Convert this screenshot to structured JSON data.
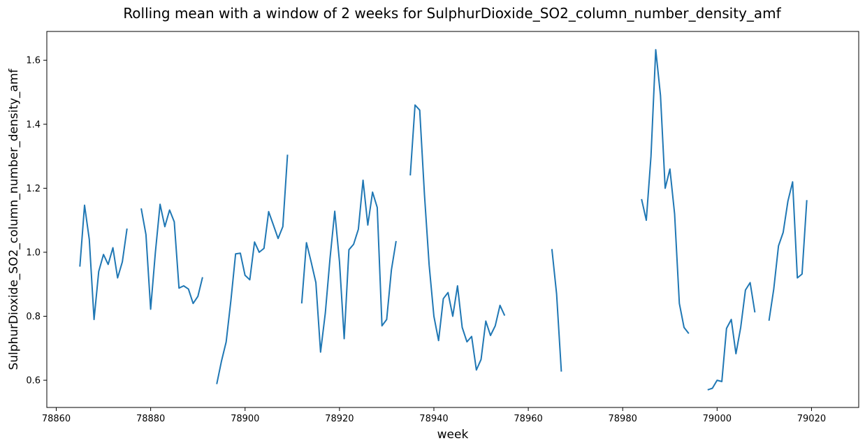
{
  "chart_data": {
    "type": "line",
    "title": "Rolling mean with a window of 2 weeks for SulphurDioxide_SO2_column_number_density_amf",
    "xlabel": "week",
    "ylabel": "SulphurDioxide_SO2_column_number_density_amf",
    "xlim": [
      78858,
      79030
    ],
    "ylim": [
      0.515,
      1.69
    ],
    "xticks": [
      78860,
      78880,
      78900,
      78920,
      78940,
      78960,
      78980,
      79000,
      79020
    ],
    "yticks": [
      0.6,
      0.8,
      1.0,
      1.2,
      1.4,
      1.6
    ],
    "xtick_labels": [
      "78860",
      "78880",
      "78900",
      "78920",
      "78940",
      "78960",
      "78980",
      "79000",
      "79020"
    ],
    "ytick_labels": [
      "0.6",
      "0.8",
      "1.0",
      "1.2",
      "1.4",
      "1.6"
    ],
    "grid": false,
    "series_color": "#1f77b4",
    "segments": [
      [
        [
          78865,
          0.955
        ],
        [
          78866,
          1.147
        ],
        [
          78867,
          1.04
        ],
        [
          78868,
          0.79
        ],
        [
          78869,
          0.94
        ],
        [
          78870,
          0.993
        ],
        [
          78871,
          0.962
        ],
        [
          78872,
          1.014
        ],
        [
          78873,
          0.92
        ],
        [
          78874,
          0.97
        ],
        [
          78875,
          1.074
        ]
      ],
      [
        [
          78878,
          1.137
        ],
        [
          78879,
          1.055
        ],
        [
          78880,
          0.822
        ],
        [
          78881,
          1.0
        ],
        [
          78882,
          1.15
        ],
        [
          78883,
          1.08
        ],
        [
          78884,
          1.132
        ],
        [
          78885,
          1.095
        ],
        [
          78886,
          0.888
        ],
        [
          78887,
          0.895
        ],
        [
          78888,
          0.885
        ],
        [
          78889,
          0.84
        ],
        [
          78890,
          0.862
        ],
        [
          78891,
          0.922
        ]
      ],
      [
        [
          78894,
          0.588
        ],
        [
          78895,
          0.66
        ],
        [
          78896,
          0.72
        ],
        [
          78897,
          0.85
        ],
        [
          78898,
          0.995
        ],
        [
          78899,
          0.997
        ],
        [
          78900,
          0.928
        ],
        [
          78901,
          0.914
        ],
        [
          78902,
          1.032
        ],
        [
          78903,
          1.0
        ],
        [
          78904,
          1.012
        ],
        [
          78905,
          1.127
        ],
        [
          78906,
          1.085
        ],
        [
          78907,
          1.043
        ],
        [
          78908,
          1.08
        ],
        [
          78909,
          1.305
        ]
      ],
      [
        [
          78912,
          0.84
        ],
        [
          78913,
          1.03
        ],
        [
          78914,
          0.97
        ],
        [
          78915,
          0.905
        ],
        [
          78916,
          0.688
        ],
        [
          78917,
          0.81
        ],
        [
          78918,
          0.98
        ],
        [
          78919,
          1.128
        ],
        [
          78920,
          0.97
        ],
        [
          78921,
          0.73
        ],
        [
          78922,
          1.008
        ],
        [
          78923,
          1.025
        ],
        [
          78924,
          1.072
        ],
        [
          78925,
          1.225
        ],
        [
          78926,
          1.085
        ],
        [
          78927,
          1.188
        ],
        [
          78928,
          1.14
        ],
        [
          78929,
          0.77
        ],
        [
          78930,
          0.79
        ],
        [
          78931,
          0.945
        ],
        [
          78932,
          1.035
        ]
      ],
      [
        [
          78935,
          1.24
        ],
        [
          78936,
          1.46
        ],
        [
          78937,
          1.444
        ],
        [
          78938,
          1.18
        ],
        [
          78939,
          0.96
        ],
        [
          78940,
          0.8
        ],
        [
          78941,
          0.724
        ],
        [
          78942,
          0.855
        ],
        [
          78943,
          0.874
        ],
        [
          78944,
          0.8
        ],
        [
          78945,
          0.895
        ],
        [
          78946,
          0.765
        ],
        [
          78947,
          0.72
        ],
        [
          78948,
          0.737
        ],
        [
          78949,
          0.632
        ],
        [
          78950,
          0.665
        ],
        [
          78951,
          0.785
        ],
        [
          78952,
          0.74
        ],
        [
          78953,
          0.77
        ],
        [
          78954,
          0.834
        ],
        [
          78955,
          0.802
        ]
      ],
      [
        [
          78965,
          1.01
        ],
        [
          78966,
          0.87
        ],
        [
          78967,
          0.627
        ]
      ],
      [
        [
          78984,
          1.166
        ],
        [
          78985,
          1.1
        ],
        [
          78986,
          1.3
        ],
        [
          78987,
          1.633
        ],
        [
          78988,
          1.49
        ],
        [
          78989,
          1.2
        ],
        [
          78990,
          1.26
        ],
        [
          78991,
          1.12
        ],
        [
          78992,
          0.84
        ],
        [
          78993,
          0.765
        ],
        [
          78994,
          0.746
        ]
      ],
      [
        [
          78998,
          0.57
        ],
        [
          78999,
          0.575
        ],
        [
          79000,
          0.6
        ],
        [
          79001,
          0.596
        ],
        [
          79002,
          0.762
        ],
        [
          79003,
          0.79
        ],
        [
          79004,
          0.683
        ],
        [
          79005,
          0.765
        ],
        [
          79006,
          0.882
        ],
        [
          79007,
          0.905
        ],
        [
          79008,
          0.812
        ]
      ],
      [
        [
          79011,
          0.786
        ],
        [
          79012,
          0.885
        ],
        [
          79013,
          1.02
        ],
        [
          79014,
          1.062
        ],
        [
          79015,
          1.16
        ],
        [
          79016,
          1.22
        ],
        [
          79017,
          0.92
        ],
        [
          79018,
          0.932
        ],
        [
          79019,
          1.163
        ]
      ]
    ]
  }
}
